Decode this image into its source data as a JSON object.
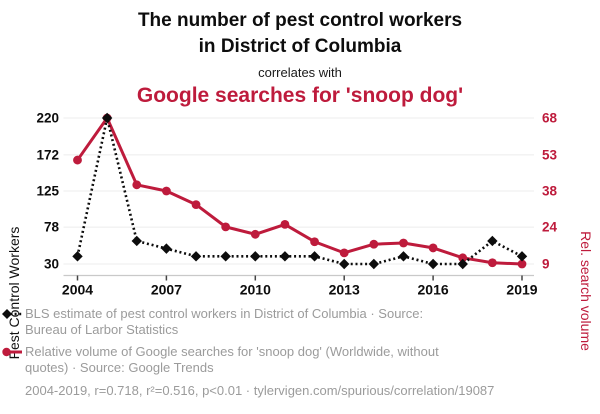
{
  "header": {
    "title_line1": "The number of pest control workers",
    "title_line2": "in District of Columbia",
    "subtitle": "correlates with",
    "title_red": "Google searches for 'snoop dog'"
  },
  "colors": {
    "series_black": "#0d0d0d",
    "series_red": "#be1b3c",
    "legend_gray": "#9b9b9b",
    "gridline": "#ececec",
    "axis_line": "#c9c9c9",
    "tick_mark": "#444444"
  },
  "chart_data": {
    "type": "line",
    "x": [
      2004,
      2005,
      2006,
      2007,
      2008,
      2009,
      2010,
      2011,
      2012,
      2013,
      2014,
      2015,
      2016,
      2017,
      2018,
      2019
    ],
    "x_tick_labels": [
      "2004",
      "2007",
      "2010",
      "2013",
      "2016",
      "2019"
    ],
    "x_tick_years": [
      2004,
      2007,
      2010,
      2013,
      2016,
      2019
    ],
    "left_axis": {
      "label": "Pest Control Workers",
      "ticks": [
        220,
        172,
        125,
        78,
        30
      ],
      "min": 30,
      "max": 220
    },
    "right_axis": {
      "label": "Rel. search volume",
      "ticks": [
        68,
        53,
        38,
        24,
        9
      ],
      "min": 9,
      "max": 68
    },
    "grid": true,
    "legend_position": "bottom",
    "series": [
      {
        "name": "BLS estimate of pest control workers in District of Columbia",
        "axis": "left",
        "color": "#be1b3c",
        "marker": "circle",
        "line_style": "solid",
        "values_note": "this entry is the red series drawn first",
        "values": [
          51,
          68,
          41,
          38.5,
          33,
          24,
          21,
          25,
          18,
          13.5,
          17,
          17.5,
          15.5,
          11.5,
          9.5,
          9
        ],
        "axis_override": "right"
      },
      {
        "name": "Relative volume of Google searches for 'snoop dog'",
        "axis": "left",
        "color": "#0d0d0d",
        "marker": "diamond",
        "line_style": "dotted",
        "values_note": "this entry is the black series drawn on top",
        "values": [
          40,
          220,
          60,
          50,
          40,
          40,
          40,
          40,
          40,
          30,
          30,
          40,
          30,
          30,
          60,
          40
        ],
        "axis_override": "left"
      }
    ]
  },
  "legend": {
    "item1": "BLS estimate of pest control workers in District of Columbia · Source: Bureau of Larbor Statistics",
    "item2": "Relative volume of Google searches for 'snoop dog' (Worldwide, without quotes) · Source: Google Trends",
    "footnote": "2004-2019, r=0.718, r²=0.516, p<0.01 · tylervigen.com/spurious/correlation/19087"
  }
}
